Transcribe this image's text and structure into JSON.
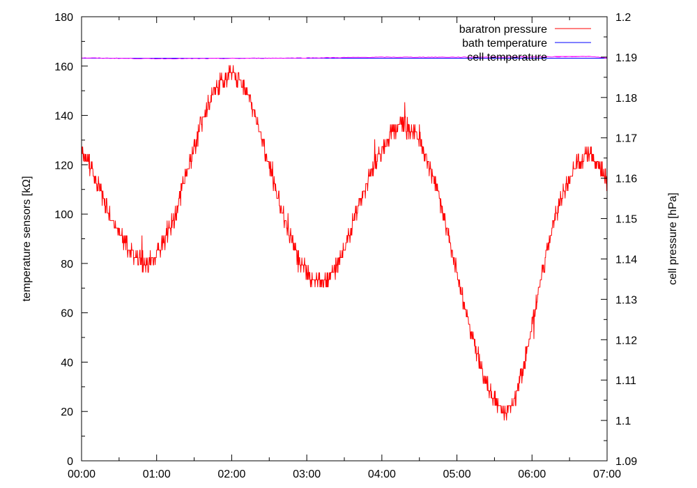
{
  "chart_data": {
    "type": "line",
    "title": "",
    "xlabel": "",
    "ylabel": "temperature sensors [kΩ]",
    "y2label": "cell pressure [hPa]",
    "xlim": [
      "00:00",
      "07:00"
    ],
    "x_ticks": [
      "00:00",
      "01:00",
      "02:00",
      "03:00",
      "04:00",
      "05:00",
      "06:00",
      "07:00"
    ],
    "ylim": [
      0,
      180
    ],
    "y_ticks": [
      "0",
      "20",
      "40",
      "60",
      "80",
      "100",
      "120",
      "140",
      "160",
      "180"
    ],
    "y2lim": [
      1.09,
      1.2
    ],
    "y2_ticks": [
      "1.09",
      "1.1",
      "1.11",
      "1.12",
      "1.13",
      "1.14",
      "1.15",
      "1.16",
      "1.17",
      "1.18",
      "1.19",
      "1.2"
    ],
    "grid": false,
    "legend_position": "top-right",
    "series": [
      {
        "name": "baratron pressure",
        "axis": "right",
        "color": "#ff0000",
        "style": "noisy-quantized",
        "points": [
          [
            "00:00",
            1.166
          ],
          [
            "00:07",
            1.163
          ],
          [
            "00:15",
            1.157
          ],
          [
            "00:22",
            1.151
          ],
          [
            "00:30",
            1.146
          ],
          [
            "00:37",
            1.143
          ],
          [
            "00:45",
            1.14
          ],
          [
            "00:52",
            1.139
          ],
          [
            "01:00",
            1.141
          ],
          [
            "01:07",
            1.145
          ],
          [
            "01:15",
            1.151
          ],
          [
            "01:22",
            1.159
          ],
          [
            "01:30",
            1.167
          ],
          [
            "01:37",
            1.175
          ],
          [
            "01:45",
            1.181
          ],
          [
            "01:52",
            1.184
          ],
          [
            "02:00",
            1.186
          ],
          [
            "02:07",
            1.184
          ],
          [
            "02:15",
            1.179
          ],
          [
            "02:22",
            1.172
          ],
          [
            "02:30",
            1.163
          ],
          [
            "02:37",
            1.155
          ],
          [
            "02:45",
            1.147
          ],
          [
            "02:52",
            1.141
          ],
          [
            "03:00",
            1.137
          ],
          [
            "03:07",
            1.134
          ],
          [
            "03:15",
            1.134
          ],
          [
            "03:22",
            1.137
          ],
          [
            "03:30",
            1.142
          ],
          [
            "03:37",
            1.149
          ],
          [
            "03:45",
            1.156
          ],
          [
            "03:52",
            1.162
          ],
          [
            "04:00",
            1.167
          ],
          [
            "04:07",
            1.171
          ],
          [
            "04:15",
            1.173
          ],
          [
            "04:22",
            1.172
          ],
          [
            "04:30",
            1.17
          ],
          [
            "04:37",
            1.164
          ],
          [
            "04:45",
            1.156
          ],
          [
            "04:52",
            1.147
          ],
          [
            "05:00",
            1.137
          ],
          [
            "05:07",
            1.127
          ],
          [
            "05:15",
            1.118
          ],
          [
            "05:22",
            1.11
          ],
          [
            "05:30",
            1.105
          ],
          [
            "05:37",
            1.102
          ],
          [
            "05:45",
            1.104
          ],
          [
            "05:52",
            1.112
          ],
          [
            "06:00",
            1.123
          ],
          [
            "06:07",
            1.135
          ],
          [
            "06:15",
            1.146
          ],
          [
            "06:22",
            1.154
          ],
          [
            "06:30",
            1.16
          ],
          [
            "06:37",
            1.164
          ],
          [
            "06:45",
            1.166
          ],
          [
            "06:52",
            1.164
          ],
          [
            "07:00",
            1.159
          ]
        ]
      },
      {
        "name": "bath temperature",
        "axis": "left",
        "color": "#0000ff",
        "style": "line",
        "points": [
          [
            "00:00",
            163.2
          ],
          [
            "07:00",
            163.2
          ]
        ]
      },
      {
        "name": "cell temperature",
        "axis": "left",
        "color": "#ff00ff",
        "style": "line",
        "points": [
          [
            "00:00",
            163.3
          ],
          [
            "01:00",
            163.0
          ],
          [
            "02:00",
            163.1
          ],
          [
            "03:00",
            163.3
          ],
          [
            "04:00",
            163.6
          ],
          [
            "05:00",
            163.6
          ],
          [
            "06:00",
            163.7
          ],
          [
            "06:45",
            163.9
          ],
          [
            "07:00",
            163.3
          ]
        ]
      }
    ]
  }
}
